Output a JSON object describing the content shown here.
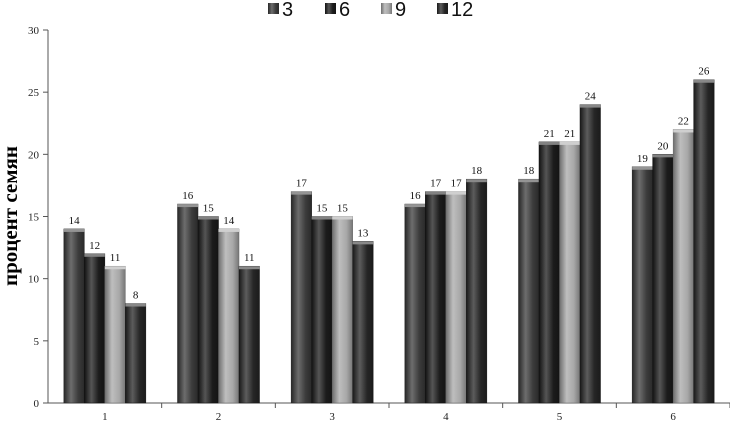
{
  "chart_data": {
    "type": "bar",
    "title": "",
    "xlabel": "",
    "ylabel": "процент семян",
    "ylim": [
      0,
      30
    ],
    "yticks": [
      0,
      5,
      10,
      15,
      20,
      25,
      30
    ],
    "grid": false,
    "legend_position": "top",
    "categories": [
      "1",
      "2",
      "3",
      "4",
      "5",
      "6"
    ],
    "series": [
      {
        "name": "3",
        "color": "#3c3c3c",
        "values": [
          14,
          16,
          17,
          16,
          18,
          19
        ]
      },
      {
        "name": "6",
        "color": "#1c1c1c",
        "values": [
          12,
          15,
          15,
          17,
          21,
          20
        ]
      },
      {
        "name": "9",
        "color": "#a8a8a8",
        "values": [
          11,
          14,
          15,
          17,
          21,
          22
        ]
      },
      {
        "name": "12",
        "color": "#262626",
        "values": [
          8,
          11,
          13,
          18,
          24,
          26
        ]
      }
    ]
  }
}
